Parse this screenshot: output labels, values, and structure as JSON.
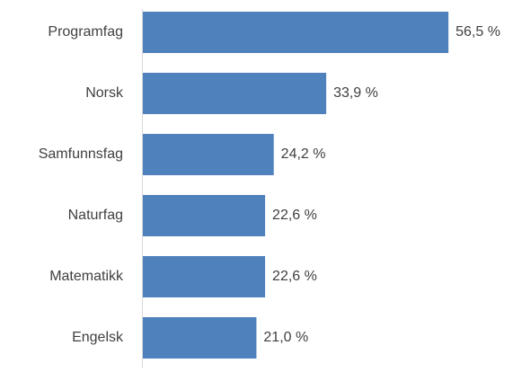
{
  "chart_data": {
    "type": "bar",
    "orientation": "horizontal",
    "categories": [
      "Programfag",
      "Norsk",
      "Samfunnsfag",
      "Naturfag",
      "Matematikk",
      "Engelsk"
    ],
    "values": [
      56.5,
      33.9,
      24.2,
      22.6,
      22.6,
      21.0
    ],
    "value_labels": [
      "56,5 %",
      "33,9 %",
      "24,2 %",
      "22,6 %",
      "22,6 %",
      "21,0 %"
    ],
    "color": "#4f81bd"
  }
}
